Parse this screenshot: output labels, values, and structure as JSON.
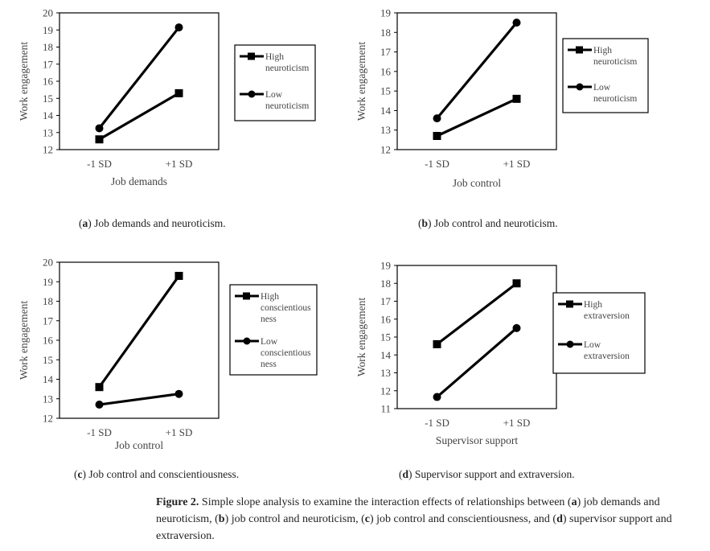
{
  "chart_data": [
    {
      "type": "line",
      "panel": "a",
      "caption_letter": "a",
      "caption_text": "Job demands and neuroticism.",
      "xlabel": "Job demands",
      "ylabel": "Work engagement",
      "categories": [
        "-1 SD",
        "+1 SD"
      ],
      "ylim": [
        12,
        20
      ],
      "yticks": [
        12,
        13,
        14,
        15,
        16,
        17,
        18,
        19,
        20
      ],
      "series": [
        {
          "name": "High neuroticism",
          "legend_lines": [
            "High",
            "neuroticism"
          ],
          "marker": "square",
          "values": [
            12.6,
            15.3
          ]
        },
        {
          "name": "Low neuroticism",
          "legend_lines": [
            "Low",
            "neuroticism"
          ],
          "marker": "circle",
          "values": [
            13.25,
            19.15
          ]
        }
      ],
      "legend": "right",
      "grid": false
    },
    {
      "type": "line",
      "panel": "b",
      "caption_letter": "b",
      "caption_text": "Job control and neuroticism.",
      "xlabel": "Job control",
      "ylabel": "Work engagement",
      "categories": [
        "-1 SD",
        "+1 SD"
      ],
      "ylim": [
        12,
        19
      ],
      "yticks": [
        12,
        13,
        14,
        15,
        16,
        17,
        18,
        19
      ],
      "series": [
        {
          "name": "High neuroticism",
          "legend_lines": [
            "High",
            "neuroticism"
          ],
          "marker": "square",
          "values": [
            12.7,
            14.6
          ]
        },
        {
          "name": "Low neuroticism",
          "legend_lines": [
            "Low",
            "neuroticism"
          ],
          "marker": "circle",
          "values": [
            13.6,
            18.5
          ]
        }
      ],
      "legend": "right",
      "grid": false
    },
    {
      "type": "line",
      "panel": "c",
      "caption_letter": "c",
      "caption_text": "Job control and conscientiousness.",
      "xlabel": "Job control",
      "ylabel": "Work engagement",
      "categories": [
        "-1 SD",
        "+1 SD"
      ],
      "ylim": [
        12,
        20
      ],
      "yticks": [
        12,
        13,
        14,
        15,
        16,
        17,
        18,
        19,
        20
      ],
      "series": [
        {
          "name": "High conscientiousness",
          "legend_lines": [
            "High",
            "conscientious",
            "ness"
          ],
          "marker": "square",
          "values": [
            13.6,
            19.3
          ]
        },
        {
          "name": "Low conscientiousness",
          "legend_lines": [
            "Low",
            "conscientious",
            "ness"
          ],
          "marker": "circle",
          "values": [
            12.7,
            13.25
          ]
        }
      ],
      "legend": "right",
      "grid": false
    },
    {
      "type": "line",
      "panel": "d",
      "caption_letter": "d",
      "caption_text": "Supervisor support and extraversion.",
      "xlabel": "Supervisor support",
      "ylabel": "Work engagement",
      "categories": [
        "-1 SD",
        "+1 SD"
      ],
      "ylim": [
        11,
        19
      ],
      "yticks": [
        11,
        12,
        13,
        14,
        15,
        16,
        17,
        18,
        19
      ],
      "series": [
        {
          "name": "High extraversion",
          "legend_lines": [
            "High",
            "extraversion"
          ],
          "marker": "square",
          "values": [
            14.6,
            18.0
          ]
        },
        {
          "name": "Low extraversion",
          "legend_lines": [
            "Low",
            "extraversion"
          ],
          "marker": "circle",
          "values": [
            11.65,
            15.5
          ]
        }
      ],
      "legend": "right",
      "grid": false
    }
  ],
  "figure_caption": {
    "label": "Figure 2.",
    "parts": [
      {
        "t": " Simple slope analysis to examine the interaction effects of relationships between ("
      },
      {
        "b": "a"
      },
      {
        "t": ") job demands and neuroticism, ("
      },
      {
        "b": "b"
      },
      {
        "t": ") job control and neuroticism, ("
      },
      {
        "b": "c"
      },
      {
        "t": ") job control and conscientiousness, and ("
      },
      {
        "b": "d"
      },
      {
        "t": ") supervisor support and extraversion."
      }
    ]
  },
  "colors": {
    "line": "#000000",
    "text": "#444444",
    "frame": "#000000"
  }
}
